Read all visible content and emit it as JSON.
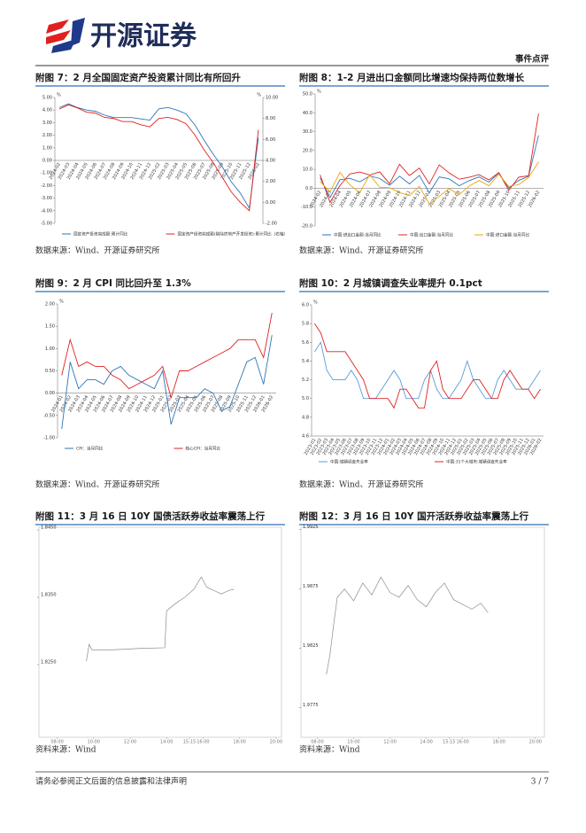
{
  "header": {
    "logo": "开源证券",
    "category": "事件点评"
  },
  "figures": [
    {
      "title": "附图 7：2 月全国固定资产投资累计同比有所回升",
      "source": "数据来源：Wind、开源证券研究所",
      "chart": {
        "type": "line",
        "grid": false,
        "y_unit": "%",
        "y2_unit": "%",
        "categories": [
          "2024-02",
          "2024-03",
          "2024-04",
          "2024-05",
          "2024-06",
          "2024-07",
          "2024-08",
          "2024-09",
          "2024-10",
          "2024-11",
          "2024-12",
          "2025-02",
          "2025-03",
          "2025-04",
          "2025-05",
          "2025-06",
          "2025-07",
          "2025-08",
          "2025-09",
          "2025-10",
          "2025-11",
          "2025-12",
          "2026-02"
        ],
        "series": [
          {
            "name": "固定资产投资完成额:累计同比",
            "color": "#2e75b6",
            "values": [
              4.2,
              4.5,
              4.2,
              4.0,
              3.9,
              3.6,
              3.4,
              3.4,
              3.4,
              3.3,
              3.2,
              4.1,
              4.2,
              4.0,
              3.7,
              2.8,
              1.6,
              0.5,
              -0.5,
              -1.7,
              -2.6,
              -3.8,
              1.8
            ]
          },
          {
            "name": "固定资产投资完成额(剔除房地产开发投资):累计同比（右轴）",
            "color": "#e02020",
            "axis": "y2",
            "values": [
              8.9,
              9.3,
              9.0,
              8.6,
              8.5,
              8.1,
              8.0,
              7.7,
              7.7,
              7.4,
              7.2,
              8.0,
              8.1,
              7.9,
              7.5,
              6.4,
              5.0,
              3.8,
              2.4,
              1.0,
              0.0,
              -0.8,
              6.9
            ]
          }
        ],
        "ylim": [
          -5,
          5
        ],
        "yticks": [
          {
            "value": -5,
            "label": "-5.00"
          },
          {
            "value": -4,
            "label": "-4.00"
          },
          {
            "value": -3,
            "label": "-3.00"
          },
          {
            "value": -2,
            "label": "-2.00"
          },
          {
            "value": -1,
            "label": "-1.00"
          },
          {
            "value": 0,
            "label": "0.00"
          },
          {
            "value": 1,
            "label": "1.00"
          },
          {
            "value": 2,
            "label": "2.00"
          },
          {
            "value": 3,
            "label": "3.00"
          },
          {
            "value": 4,
            "label": "4.00"
          },
          {
            "value": 5,
            "label": "5.00"
          }
        ],
        "y2lim": [
          -2,
          10
        ],
        "y2ticks": [
          {
            "value": -2,
            "label": "-2.00"
          },
          {
            "value": 0,
            "label": "0.00"
          },
          {
            "value": 2,
            "label": "2.00"
          },
          {
            "value": 4,
            "label": "4.00"
          },
          {
            "value": 6,
            "label": "6.00"
          },
          {
            "value": 8,
            "label": "8.00"
          },
          {
            "value": 10,
            "label": "10.00"
          }
        ]
      }
    },
    {
      "title": "附图 8：1-2 月进出口金额同比增速均保持两位数增长",
      "source": "数据来源：Wind、开源证券研究所",
      "chart": {
        "type": "line",
        "grid": false,
        "y_unit": "%",
        "categories": [
          "2024-02",
          "2024-03",
          "2024-04",
          "2024-05",
          "2024-06",
          "2024-07",
          "2024-08",
          "2024-09",
          "2024-10",
          "2024-11",
          "2024-12",
          "2025-02",
          "2025-03",
          "2025-04",
          "2025-05",
          "2025-06",
          "2025-07",
          "2025-08",
          "2025-09",
          "2025-10",
          "2025-11",
          "2025-12",
          "2026-02"
        ],
        "series": [
          {
            "name": "中国:进出口金额:当月同比",
            "color": "#2e75b6",
            "values": [
              5.5,
              -4.9,
              4.5,
              5.2,
              3.4,
              6.5,
              5.2,
              1.6,
              6.4,
              2.3,
              6.8,
              -2.4,
              6.0,
              5.0,
              1.3,
              4.0,
              6.0,
              3.2,
              8.1,
              0.1,
              4.1,
              6.4,
              28
            ]
          },
          {
            "name": "中国:出口金额:当月同比",
            "color": "#e02020",
            "values": [
              7.1,
              -7.5,
              1.5,
              7.6,
              8.6,
              7.0,
              8.7,
              2.4,
              12.7,
              6.7,
              10.7,
              2.3,
              12.4,
              8.1,
              4.8,
              5.8,
              7.2,
              4.4,
              8.3,
              -1.1,
              5.9,
              6.6,
              39.6
            ]
          },
          {
            "name": "中国:进口金额:当月同比",
            "color": "#f0a30a",
            "values": [
              3.5,
              -1.9,
              8.4,
              1.8,
              -2.3,
              7.2,
              0.5,
              0.3,
              -2.3,
              -3.9,
              1.0,
              -8.4,
              -4.3,
              -0.2,
              -3.4,
              1.1,
              4.1,
              1.3,
              7.4,
              1.0,
              1.9,
              5.7,
              14.0
            ]
          }
        ],
        "ylim": [
          -20,
          50
        ],
        "yticks": [
          {
            "value": -20,
            "label": "-20.0"
          },
          {
            "value": -10,
            "label": "-10.0"
          },
          {
            "value": 0,
            "label": "0.0"
          },
          {
            "value": 10,
            "label": "10.0"
          },
          {
            "value": 20,
            "label": "20.0"
          },
          {
            "value": 30,
            "label": "30.0"
          },
          {
            "value": 40,
            "label": "40.0"
          },
          {
            "value": 50,
            "label": "50.0"
          }
        ]
      }
    },
    {
      "title": "附图 9：2 月 CPI 同比回升至 1.3%",
      "source": "数据来源：Wind、开源证券研究所",
      "chart": {
        "type": "line",
        "grid": false,
        "y_unit": "%",
        "categories": [
          "2024-01",
          "2024-02",
          "2024-03",
          "2024-04",
          "2024-05",
          "2024-06",
          "2024-07",
          "2024-08",
          "2024-09",
          "2024-10",
          "2024-11",
          "2024-12",
          "2025-01",
          "2025-02",
          "2025-03",
          "2025-04",
          "2025-05",
          "2025-06",
          "2025-07",
          "2025-08",
          "2025-09",
          "2025-10",
          "2025-11",
          "2025-12",
          "2026-01",
          "2026-02"
        ],
        "series": [
          {
            "name": "CPI：当月同比",
            "color": "#2e75b6",
            "values": [
              -0.8,
              0.7,
              0.1,
              0.3,
              0.3,
              0.2,
              0.5,
              0.6,
              0.4,
              0.3,
              0.2,
              0.1,
              0.5,
              -0.7,
              -0.1,
              -0.1,
              -0.1,
              0.1,
              0.0,
              -0.4,
              -0.3,
              0.2,
              0.7,
              0.8,
              0.2,
              1.3
            ]
          },
          {
            "name": "核心CPI：当月同比",
            "color": "#e02020",
            "values": [
              0.4,
              1.2,
              0.6,
              0.7,
              0.6,
              0.6,
              0.4,
              0.3,
              0.1,
              0.2,
              0.3,
              0.4,
              0.6,
              -0.1,
              0.5,
              0.5,
              0.6,
              0.7,
              0.8,
              0.9,
              1.0,
              1.2,
              1.2,
              1.2,
              0.8,
              1.8
            ]
          }
        ],
        "ylim": [
          -1,
          2
        ],
        "yticks": [
          {
            "value": -1,
            "label": "-1.00"
          },
          {
            "value": -0.5,
            "label": "-0.50"
          },
          {
            "value": 0,
            "label": "0.00"
          },
          {
            "value": 0.5,
            "label": "0.50"
          },
          {
            "value": 1,
            "label": "1.00"
          },
          {
            "value": 1.5,
            "label": "1.50"
          },
          {
            "value": 2,
            "label": "2.00"
          }
        ]
      }
    },
    {
      "title": "附图 10：2 月城镇调查失业率提升 0.1pct",
      "source": "数据来源：Wind、开源证券研究所",
      "chart": {
        "type": "line",
        "grid": false,
        "y_unit": "%",
        "categories": [
          "2023-01",
          "2023-02",
          "2023-03",
          "2023-04",
          "2023-05",
          "2023-06",
          "2023-07",
          "2023-08",
          "2023-09",
          "2023-10",
          "2023-11",
          "2023-12",
          "2024-01",
          "2024-02",
          "2024-03",
          "2024-04",
          "2024-05",
          "2024-06",
          "2024-07",
          "2024-08",
          "2024-09",
          "2024-10",
          "2024-11",
          "2024-12",
          "2025-01",
          "2025-02",
          "2025-03",
          "2025-04",
          "2025-05",
          "2025-06",
          "2025-07",
          "2025-08",
          "2025-09",
          "2025-10",
          "2025-11",
          "2025-12",
          "2026-01",
          "2026-02"
        ],
        "series": [
          {
            "name": "中国:城镇调查失业率",
            "color": "#5b9bd5",
            "values": [
              5.5,
              5.6,
              5.3,
              5.2,
              5.2,
              5.2,
              5.3,
              5.2,
              5.0,
              5.0,
              5.0,
              5.1,
              5.2,
              5.3,
              5.2,
              5.0,
              5.0,
              5.0,
              5.2,
              5.3,
              5.1,
              5.0,
              5.0,
              5.1,
              5.2,
              5.4,
              5.2,
              5.1,
              5.0,
              5.0,
              5.2,
              5.3,
              5.2,
              5.1,
              5.1,
              5.1,
              5.2,
              5.3
            ]
          },
          {
            "name": "中国:31个大城市:城镇调查失业率",
            "color": "#e02020",
            "values": [
              5.8,
              5.7,
              5.5,
              5.5,
              5.5,
              5.5,
              5.4,
              5.3,
              5.2,
              5.0,
              5.0,
              5.0,
              5.0,
              4.9,
              5.1,
              5.1,
              5.0,
              4.9,
              4.9,
              5.3,
              5.4,
              5.1,
              5.0,
              5.0,
              5.0,
              5.1,
              5.2,
              5.2,
              5.1,
              5.0,
              5.0,
              5.2,
              5.3,
              5.2,
              5.1,
              5.1,
              5.0,
              5.1
            ]
          }
        ],
        "ylim": [
          4.6,
          6.0
        ],
        "yticks": [
          {
            "value": 4.6,
            "label": "4.6"
          },
          {
            "value": 4.8,
            "label": "4.8"
          },
          {
            "value": 5.0,
            "label": "5.0"
          },
          {
            "value": 5.2,
            "label": "5.2"
          },
          {
            "value": 5.4,
            "label": "5.4"
          },
          {
            "value": 5.6,
            "label": "5.6"
          },
          {
            "value": 5.8,
            "label": "5.8"
          },
          {
            "value": 6.0,
            "label": "6.0"
          }
        ]
      }
    },
    {
      "title": "附图 11：3 月 16 日 10Y 国债活跃券收益率震荡上行",
      "source": "资料来源：Wind",
      "chart": {
        "type": "line",
        "grid": false,
        "series": [
          {
            "color": "#8c8c8c",
            "x": [
              9.6,
              9.75,
              9.9,
              11.0,
              12.5,
              13.9,
              14.0,
              14.6,
              15.0,
              15.5,
              15.9,
              16.2,
              16.6,
              17.0,
              17.4,
              17.7
            ],
            "values": [
              1.8255,
              1.828,
              1.8272,
              1.8272,
              1.8274,
              1.8275,
              1.833,
              1.8343,
              1.835,
              1.8362,
              1.838,
              1.8365,
              1.836,
              1.8355,
              1.836,
              1.8362
            ]
          }
        ],
        "xlim": [
          7,
          20.3
        ],
        "xticks": [
          {
            "value": 8,
            "label": "08:00"
          },
          {
            "value": 10,
            "label": "10:00"
          },
          {
            "value": 12,
            "label": "12:00"
          },
          {
            "value": 14,
            "label": "14:00"
          },
          {
            "value": 15.25,
            "label": "15:15"
          },
          {
            "value": 16,
            "label": "16:00"
          },
          {
            "value": 18,
            "label": "18:00"
          },
          {
            "value": 20,
            "label": "20:00"
          }
        ],
        "ylim": [
          1.8142,
          1.8454
        ],
        "yticks": [
          {
            "value": 1.825,
            "label": "1.8250"
          },
          {
            "value": 1.835,
            "label": "1.8350"
          },
          {
            "value": 1.845,
            "label": "1.8450"
          }
        ]
      }
    },
    {
      "title": "附图 12：3 月 16 日 10Y 国开活跃券收益率震荡上行",
      "source": "资料来源：Wind",
      "chart": {
        "type": "line",
        "grid": false,
        "series": [
          {
            "color": "#8c8c8c",
            "x": [
              8.5,
              8.7,
              8.9,
              9.1,
              9.5,
              10,
              10.5,
              11,
              11.5,
              12,
              12.5,
              13,
              13.5,
              14,
              14.5,
              15,
              15.5,
              16,
              16.5,
              17,
              17.4
            ],
            "values": [
              1.9803,
              1.982,
              1.9845,
              1.9868,
              1.9875,
              1.9865,
              1.988,
              1.987,
              1.9885,
              1.9872,
              1.9868,
              1.9878,
              1.9866,
              1.986,
              1.9872,
              1.988,
              1.9866,
              1.9862,
              1.9858,
              1.9863,
              1.9855
            ]
          }
        ],
        "xlim": [
          7.1,
          20.5
        ],
        "xticks": [
          {
            "value": 8,
            "label": "08:00"
          },
          {
            "value": 10,
            "label": "10:00"
          },
          {
            "value": 12,
            "label": "12:00"
          },
          {
            "value": 14,
            "label": "14:00"
          },
          {
            "value": 15.25,
            "label": "15:15"
          },
          {
            "value": 16,
            "label": "16:00"
          },
          {
            "value": 18,
            "label": "18:00"
          },
          {
            "value": 20,
            "label": "20:00"
          }
        ],
        "ylim": [
          1.975,
          1.9927
        ],
        "yticks": [
          {
            "value": 1.9775,
            "label": "1.9775"
          },
          {
            "value": 1.9825,
            "label": "1.9825"
          },
          {
            "value": 1.9875,
            "label": "1.9875"
          },
          {
            "value": 1.9925,
            "label": "1.9925"
          }
        ]
      }
    }
  ],
  "footer": {
    "disclaimer": "请务必参阅正文后面的信息披露和法律声明",
    "page": "3 / 7"
  }
}
